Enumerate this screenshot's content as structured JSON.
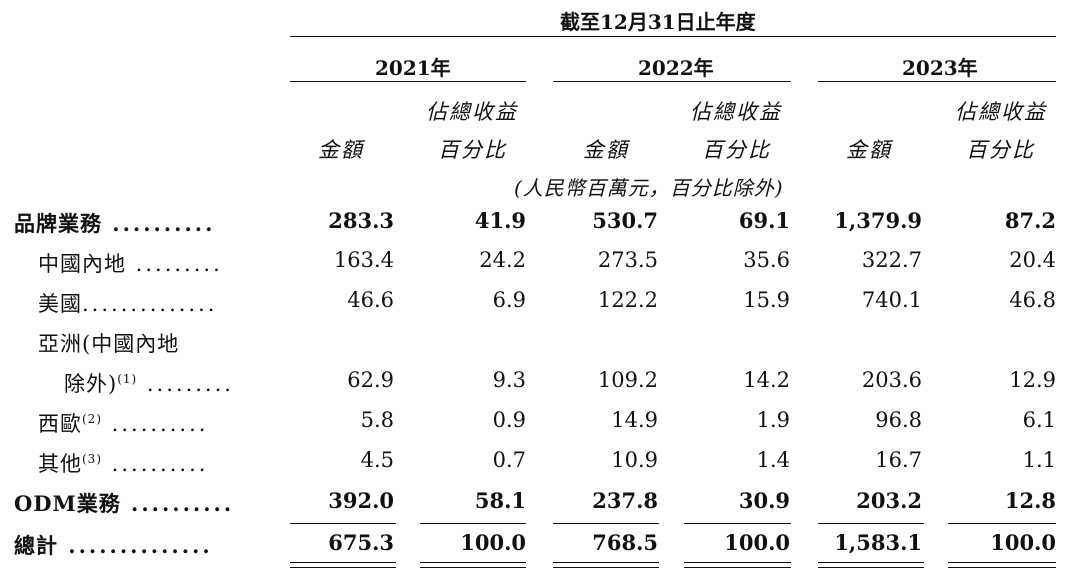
{
  "header": {
    "period": "截至12月31日止年度",
    "years": [
      "2021年",
      "2022年",
      "2023年"
    ],
    "pct_line1": "佔總收益",
    "pct_line2": "百分比",
    "amount": "金額",
    "unit": "(人民幣百萬元，百分比除外)"
  },
  "rows": [
    {
      "label": "品牌業務",
      "dots": " ..........",
      "bold": true,
      "values": [
        "283.3",
        "41.9",
        "530.7",
        "69.1",
        "1,379.9",
        "87.2"
      ]
    },
    {
      "label": "中國內地",
      "dots": " .........",
      "values": [
        "163.4",
        "24.2",
        "273.5",
        "35.6",
        "322.7",
        "20.4"
      ]
    },
    {
      "label": "美國",
      "dots": "..............",
      "values": [
        "46.6",
        "6.9",
        "122.2",
        "15.9",
        "740.1",
        "46.8"
      ]
    },
    {
      "label": "亞洲(中國內地",
      "values": []
    },
    {
      "label": "除外)",
      "sup": "(1)",
      "dots": " .........",
      "values": [
        "62.9",
        "9.3",
        "109.2",
        "14.2",
        "203.6",
        "12.9"
      ]
    },
    {
      "label": "西歐",
      "sup": "(2)",
      "dots": " ..........",
      "values": [
        "5.8",
        "0.9",
        "14.9",
        "1.9",
        "96.8",
        "6.1"
      ]
    },
    {
      "label": "其他",
      "sup": "(3)",
      "dots": " ..........",
      "values": [
        "4.5",
        "0.7",
        "10.9",
        "1.4",
        "16.7",
        "1.1"
      ]
    },
    {
      "label": "ODM業務",
      "dots": " ..........",
      "bold": true,
      "values": [
        "392.0",
        "58.1",
        "237.8",
        "30.9",
        "203.2",
        "12.8"
      ]
    },
    {
      "label": "總計",
      "dots": " ..............",
      "bold": true,
      "values": [
        "675.3",
        "100.0",
        "768.5",
        "100.0",
        "1,583.1",
        "100.0"
      ]
    }
  ]
}
